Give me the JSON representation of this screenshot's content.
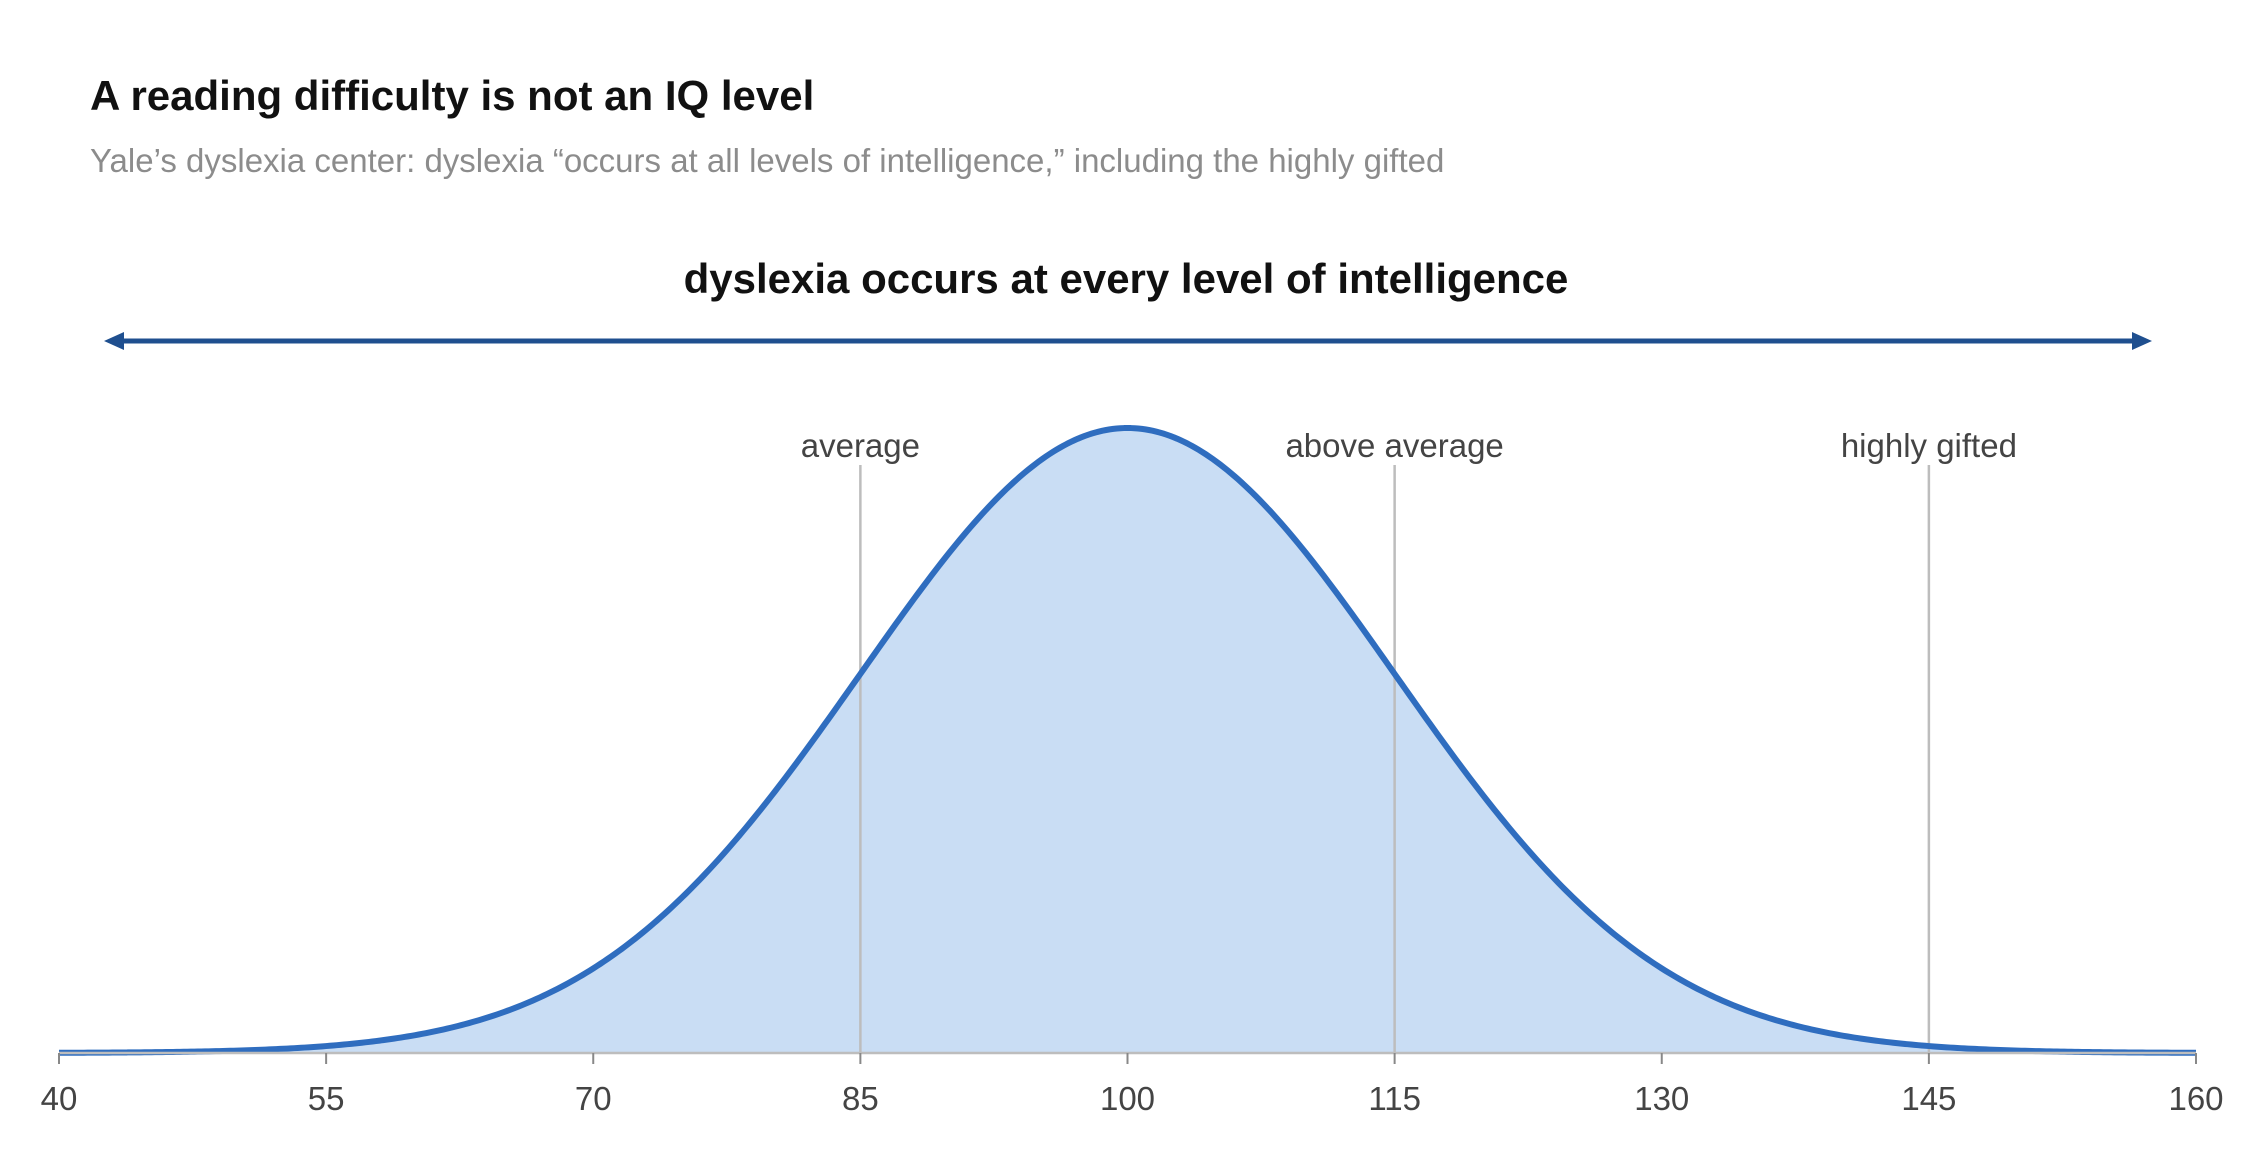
{
  "chart_data": {
    "type": "area",
    "title": "A reading difficulty is not an IQ level",
    "subtitle": "Yale’s dyslexia center: dyslexia “occurs at all levels of intelligence,” including the highly gifted",
    "distribution": {
      "kind": "normal",
      "mean": 100,
      "sd": 15
    },
    "xlim": [
      40,
      160
    ],
    "x_ticks": [
      40,
      55,
      70,
      85,
      100,
      115,
      130,
      145,
      160
    ],
    "xlabel": "",
    "ylabel": "",
    "grid": false,
    "markers": [
      {
        "x": 85,
        "label": "average"
      },
      {
        "x": 115,
        "label": "above average"
      },
      {
        "x": 145,
        "label": "highly gifted"
      }
    ],
    "range_annotation": {
      "label": "dyslexia occurs at every level of intelligence",
      "from": 40,
      "to": 160
    },
    "colors": {
      "curve": "#2f6dbf",
      "fill": "#c9ddf4",
      "arrow": "#1f4f8f",
      "marker_line": "#bdbdbd",
      "axis": "#bdbdbd"
    }
  }
}
